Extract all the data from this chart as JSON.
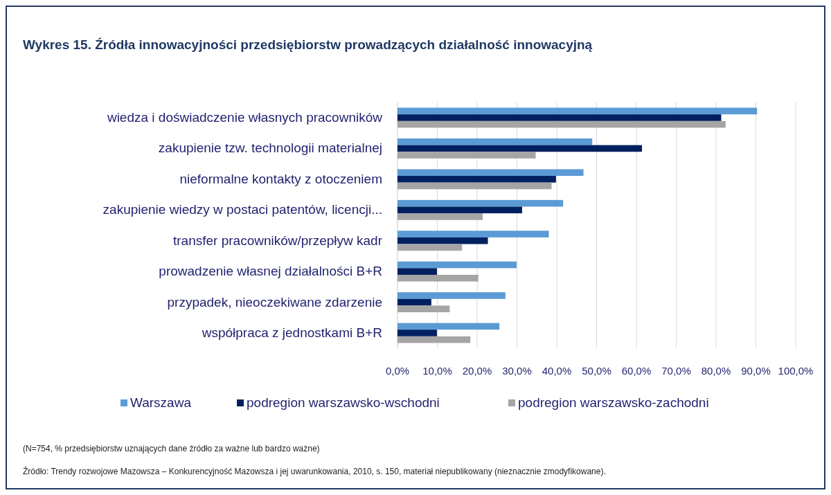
{
  "chart_data": {
    "type": "bar",
    "orientation": "horizontal",
    "title": "Wykres 15. Źródła innowacyjności przedsiębiorstw prowadzących działalność innowacyjną",
    "categories": [
      "wiedza i doświadczenie własnych pracowników",
      "zakupienie tzw. technologii materialnej",
      "nieformalne kontakty z otoczeniem",
      "zakupienie wiedzy w postaci patentów, licencji...",
      "transfer pracowników/przepływ kadr",
      "prowadzenie własnej działalności B+R",
      "przypadek, nieoczekiwane zdarzenie",
      "współpraca z jednostkami B+R"
    ],
    "series": [
      {
        "name": "Warszawa",
        "color": "#5b9bd5",
        "values": [
          90.3,
          48.9,
          46.7,
          41.6,
          38.0,
          29.9,
          27.1,
          25.6
        ]
      },
      {
        "name": "podregion warszawsko-wschodni",
        "color": "#002060",
        "values": [
          81.3,
          61.4,
          39.8,
          31.3,
          22.7,
          9.9,
          8.5,
          9.9
        ]
      },
      {
        "name": "podregion warszawsko-zachodni",
        "color": "#a5a5a5",
        "values": [
          82.4,
          34.7,
          38.7,
          21.4,
          16.2,
          20.3,
          13.1,
          18.3
        ]
      }
    ],
    "xlim": [
      0,
      100
    ],
    "xticks": [
      {
        "value": 0,
        "label": "0,0%"
      },
      {
        "value": 10,
        "label": "10,0%"
      },
      {
        "value": 20,
        "label": "20,0%"
      },
      {
        "value": 30,
        "label": "30,0%"
      },
      {
        "value": 40,
        "label": "40,0%"
      },
      {
        "value": 50,
        "label": "50,0%"
      },
      {
        "value": 60,
        "label": "60,0%"
      },
      {
        "value": 70,
        "label": "70,0%"
      },
      {
        "value": 80,
        "label": "80,0%"
      },
      {
        "value": 90,
        "label": "90,0%"
      },
      {
        "value": 100,
        "label": "100,0%"
      }
    ],
    "grid": "x",
    "legend": "bottom",
    "annotations": [
      "(N=754, % przedsiębiorstw uznających dane źródło za ważne lub bardzo ważne)",
      "Źródło: Trendy rozwojowe Mazowsza – Konkurencyjność Mazowsza i jej uwarunkowania, 2010, s. 150, materiał niepublikowany (nieznacznie zmodyfikowane)."
    ]
  }
}
